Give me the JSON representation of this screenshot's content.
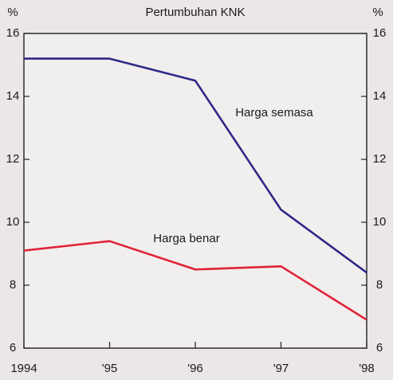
{
  "chart_data": {
    "type": "line",
    "title": "Pertumbuhan KNK",
    "ylabel": "%",
    "y2label": "%",
    "categories": [
      "1994",
      "'95",
      "'96",
      "'97",
      "'98"
    ],
    "series": [
      {
        "name": "Harga semasa",
        "color": "#2e2a86",
        "values": [
          15.2,
          15.2,
          14.5,
          10.4,
          8.4
        ]
      },
      {
        "name": "Harga benar",
        "color": "#e02238",
        "values": [
          9.1,
          9.4,
          8.5,
          8.6,
          6.9
        ]
      }
    ],
    "ylim": [
      6,
      16
    ],
    "yticks": [
      6,
      8,
      10,
      12,
      14,
      16
    ],
    "y2lim": [
      6,
      16
    ],
    "y2ticks": [
      6,
      8,
      10,
      12,
      14,
      16
    ]
  }
}
